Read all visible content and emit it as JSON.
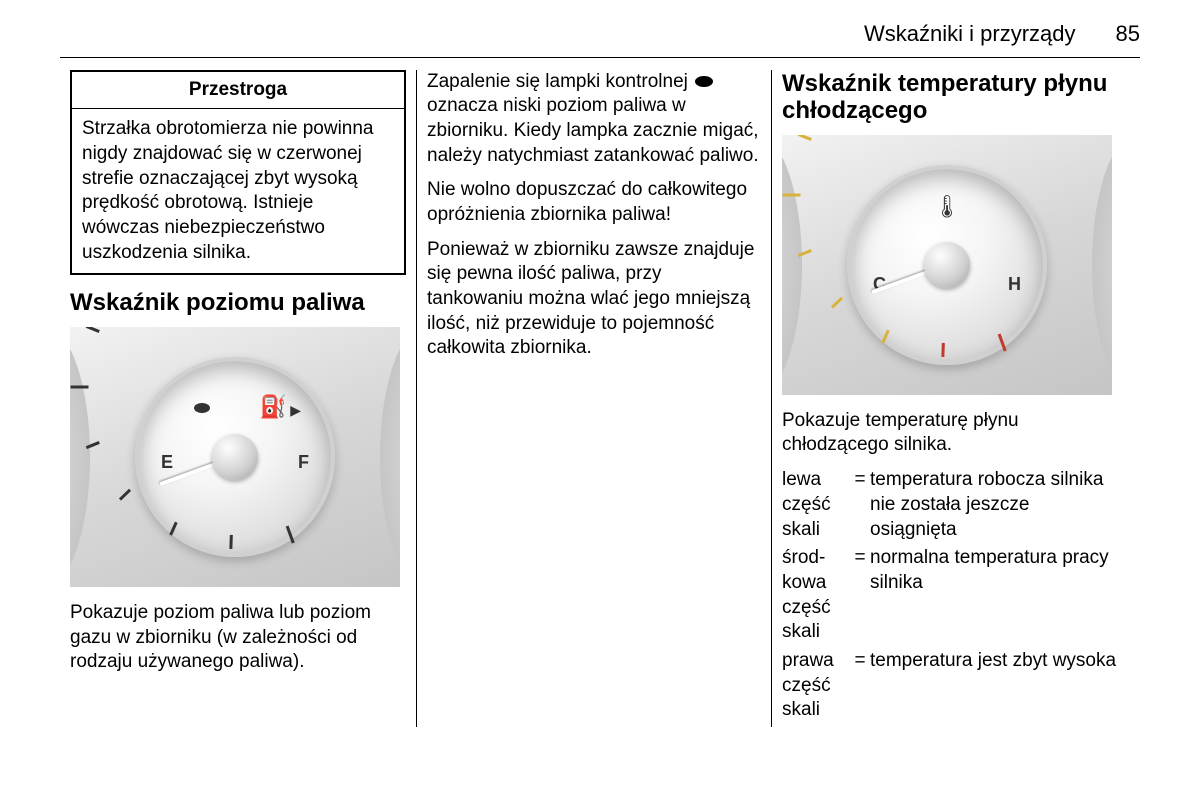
{
  "header": {
    "title": "Wskaźniki i przyrządy",
    "page": "85"
  },
  "col1": {
    "caution_title": "Przestroga",
    "caution_body": "Strzałka obrotomierza nie powinna nigdy znajdować się w czerwonej strefie oznaczającej zbyt wysoką prędkość obrotową. Istnieje wówczas niebezpieczeństwo uszkodzenia silnika.",
    "section": "Wskaźnik poziomu paliwa",
    "fuel_gauge": {
      "left_letter": "E",
      "right_letter": "F",
      "needle_angle_deg": -20,
      "colors": {
        "face": "#eeeeee",
        "bezel": "#d0d0d0",
        "neutral": "#333333"
      }
    },
    "caption": "Pokazuje poziom paliwa lub poziom gazu w zbiorniku (w zależności od rodzaju używanego paliwa)."
  },
  "col2": {
    "p1a": "Zapalenie się lampki kontrolnej ",
    "p1b": " oznacza niski poziom paliwa w zbiorniku. Kiedy lampka zacznie migać, należy natychmiast zatankować paliwo.",
    "p2": "Nie wolno dopuszczać do całkowitego opróżnienia zbiornika paliwa!",
    "p3": "Ponieważ w zbiorniku zawsze znajduje się pewna ilość paliwa, przy tankowaniu można wlać jego mniejszą ilość, niż przewiduje to pojemność całkowita zbiornika."
  },
  "col3": {
    "section": "Wskaźnik temperatury płynu chłodzącego",
    "temp_gauge": {
      "left_letter": "C",
      "right_letter": "H",
      "needle_angle_deg": -20,
      "colors": {
        "green": "#8aa63f",
        "yellow": "#d9b23d",
        "red": "#c0392b",
        "neutral": "#333333"
      }
    },
    "caption": "Pokazuje temperaturę płynu chłodzącego silnika.",
    "legend": [
      {
        "k": "lewa część skali",
        "v": "temperatura robocza silnika nie została jeszcze osiągnięta"
      },
      {
        "k": "środ­kowa część skali",
        "v": "normalna temperatura pracy silnika"
      },
      {
        "k": "prawa część skali",
        "v": "temperatura jest zbyt wysoka"
      }
    ]
  }
}
